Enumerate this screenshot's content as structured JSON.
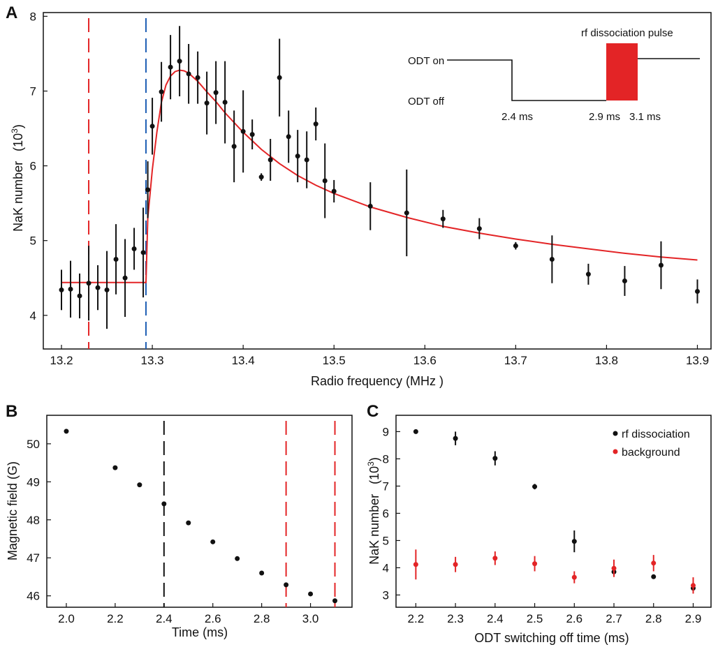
{
  "colors": {
    "red": "#e32426",
    "blue": "#1f5fb4",
    "black": "#111111"
  },
  "chart_data": [
    {
      "id": "A",
      "panel_label": "A",
      "type": "scatter",
      "xlabel": "Radio frequency   (MHz )",
      "ylabel_main": "NaK  number",
      "ylabel_unit_base": "(10",
      "ylabel_unit_exp": "3",
      "ylabel_unit_close": ")",
      "xlim": [
        13.18,
        13.915
      ],
      "ylim": [
        3.55,
        8.05
      ],
      "xticks": [
        13.2,
        13.3,
        13.4,
        13.5,
        13.6,
        13.7,
        13.8,
        13.9
      ],
      "xtick_labels": [
        "13.2",
        "13.3",
        "13.4",
        "13.5",
        "13.6",
        "13.7",
        "13.8",
        "13.9"
      ],
      "yticks": [
        4,
        5,
        6,
        7,
        8
      ],
      "ytick_labels": [
        "4",
        "5",
        "6",
        "7",
        "8"
      ],
      "vlines": [
        {
          "x": 13.23,
          "color": "red",
          "dash": "dashed"
        },
        {
          "x": 13.293,
          "color": "blue",
          "dash": "dashed"
        }
      ],
      "points": [
        {
          "x": 13.2,
          "y": 4.34,
          "err": 0.27
        },
        {
          "x": 13.21,
          "y": 4.35,
          "err": 0.38
        },
        {
          "x": 13.22,
          "y": 4.26,
          "err": 0.3
        },
        {
          "x": 13.23,
          "y": 4.43,
          "err": 0.5
        },
        {
          "x": 13.24,
          "y": 4.37,
          "err": 0.3
        },
        {
          "x": 13.25,
          "y": 4.34,
          "err": 0.52
        },
        {
          "x": 13.26,
          "y": 4.75,
          "err": 0.47
        },
        {
          "x": 13.27,
          "y": 4.5,
          "err": 0.52
        },
        {
          "x": 13.28,
          "y": 4.89,
          "err": 0.28
        },
        {
          "x": 13.29,
          "y": 4.84,
          "err": 0.6
        },
        {
          "x": 13.295,
          "y": 5.68,
          "err": 0.38
        },
        {
          "x": 13.3,
          "y": 6.53,
          "err": 0.38
        },
        {
          "x": 13.31,
          "y": 6.99,
          "err": 0.4
        },
        {
          "x": 13.32,
          "y": 7.32,
          "err": 0.43
        },
        {
          "x": 13.33,
          "y": 7.4,
          "err": 0.47
        },
        {
          "x": 13.34,
          "y": 7.23,
          "err": 0.4
        },
        {
          "x": 13.35,
          "y": 7.18,
          "err": 0.35
        },
        {
          "x": 13.36,
          "y": 6.84,
          "err": 0.42
        },
        {
          "x": 13.37,
          "y": 6.98,
          "err": 0.42
        },
        {
          "x": 13.38,
          "y": 6.85,
          "err": 0.55
        },
        {
          "x": 13.39,
          "y": 6.26,
          "err": 0.48
        },
        {
          "x": 13.4,
          "y": 6.46,
          "err": 0.55
        },
        {
          "x": 13.41,
          "y": 6.42,
          "err": 0.2
        },
        {
          "x": 13.42,
          "y": 5.85,
          "err": 0.05
        },
        {
          "x": 13.43,
          "y": 6.08,
          "err": 0.28
        },
        {
          "x": 13.44,
          "y": 7.18,
          "err": 0.52
        },
        {
          "x": 13.45,
          "y": 6.39,
          "err": 0.35
        },
        {
          "x": 13.46,
          "y": 6.13,
          "err": 0.35
        },
        {
          "x": 13.47,
          "y": 6.08,
          "err": 0.38
        },
        {
          "x": 13.48,
          "y": 6.56,
          "err": 0.22
        },
        {
          "x": 13.49,
          "y": 5.8,
          "err": 0.5
        },
        {
          "x": 13.5,
          "y": 5.66,
          "err": 0.15
        },
        {
          "x": 13.54,
          "y": 5.46,
          "err": 0.32
        },
        {
          "x": 13.58,
          "y": 5.37,
          "err": 0.58
        },
        {
          "x": 13.62,
          "y": 5.29,
          "err": 0.12
        },
        {
          "x": 13.66,
          "y": 5.16,
          "err": 0.14
        },
        {
          "x": 13.7,
          "y": 4.93,
          "err": 0.05
        },
        {
          "x": 13.74,
          "y": 4.75,
          "err": 0.32
        },
        {
          "x": 13.78,
          "y": 4.55,
          "err": 0.14
        },
        {
          "x": 13.82,
          "y": 4.46,
          "err": 0.2
        },
        {
          "x": 13.86,
          "y": 4.67,
          "err": 0.32
        },
        {
          "x": 13.9,
          "y": 4.32,
          "err": 0.16
        }
      ],
      "fit": {
        "color": "red",
        "x": [
          13.2,
          13.293,
          13.295,
          13.3,
          13.305,
          13.31,
          13.315,
          13.32,
          13.325,
          13.33,
          13.335,
          13.34,
          13.35,
          13.36,
          13.37,
          13.38,
          13.39,
          13.4,
          13.42,
          13.44,
          13.46,
          13.48,
          13.5,
          13.54,
          13.58,
          13.62,
          13.66,
          13.7,
          13.74,
          13.78,
          13.82,
          13.86,
          13.9
        ],
        "y": [
          4.44,
          4.44,
          5.3,
          5.95,
          6.45,
          6.85,
          7.08,
          7.2,
          7.26,
          7.28,
          7.27,
          7.24,
          7.13,
          6.99,
          6.86,
          6.71,
          6.58,
          6.45,
          6.22,
          6.03,
          5.87,
          5.74,
          5.63,
          5.45,
          5.31,
          5.19,
          5.1,
          5.02,
          4.95,
          4.89,
          4.83,
          4.78,
          4.74
        ]
      },
      "inset": {
        "odt_on_label": "ODT on",
        "odt_off_label": "ODT off",
        "pulse_label": "rf dissociation pulse",
        "t1_label": "2.4 ms",
        "t2_label": "2.9 ms",
        "t3_label": "3.1 ms"
      }
    },
    {
      "id": "B",
      "panel_label": "B",
      "type": "scatter",
      "xlabel": "Time  (ms)",
      "ylabel": "Magnetic field  (G)",
      "xlim": [
        1.92,
        3.17
      ],
      "ylim": [
        45.7,
        50.75
      ],
      "xticks": [
        2.0,
        2.2,
        2.4,
        2.6,
        2.8,
        3.0
      ],
      "xtick_labels": [
        "2.0",
        "2.2",
        "2.4",
        "2.6",
        "2.8",
        "3.0"
      ],
      "yticks": [
        46,
        47,
        48,
        49,
        50
      ],
      "ytick_labels": [
        "46",
        "47",
        "48",
        "49",
        "50"
      ],
      "vlines": [
        {
          "x": 2.4,
          "color": "black",
          "dash": "dashed"
        },
        {
          "x": 2.9,
          "color": "red",
          "dash": "dashed"
        },
        {
          "x": 3.1,
          "color": "red",
          "dash": "dashed"
        }
      ],
      "points": [
        {
          "x": 2.0,
          "y": 50.33
        },
        {
          "x": 2.2,
          "y": 49.37
        },
        {
          "x": 2.3,
          "y": 48.92
        },
        {
          "x": 2.4,
          "y": 48.42
        },
        {
          "x": 2.5,
          "y": 47.92
        },
        {
          "x": 2.6,
          "y": 47.42
        },
        {
          "x": 2.7,
          "y": 46.98
        },
        {
          "x": 2.8,
          "y": 46.6
        },
        {
          "x": 2.9,
          "y": 46.29
        },
        {
          "x": 3.0,
          "y": 46.05
        },
        {
          "x": 3.1,
          "y": 45.87
        }
      ]
    },
    {
      "id": "C",
      "panel_label": "C",
      "type": "scatter",
      "xlabel": "ODT switching off time  (ms)",
      "ylabel_main": "NaK  number",
      "ylabel_unit_base": "(10",
      "ylabel_unit_exp": "3",
      "ylabel_unit_close": ")",
      "xlim": [
        2.15,
        2.945
      ],
      "ylim": [
        2.55,
        9.6
      ],
      "xticks": [
        2.2,
        2.3,
        2.4,
        2.5,
        2.6,
        2.7,
        2.8,
        2.9
      ],
      "xtick_labels": [
        "2.2",
        "2.3",
        "2.4",
        "2.5",
        "2.6",
        "2.7",
        "2.8",
        "2.9"
      ],
      "yticks": [
        3,
        4,
        5,
        6,
        7,
        8,
        9
      ],
      "ytick_labels": [
        "3",
        "4",
        "5",
        "6",
        "7",
        "8",
        "9"
      ],
      "legend": [
        {
          "label": "rf dissociation",
          "color": "black"
        },
        {
          "label": "background",
          "color": "red"
        }
      ],
      "series": [
        {
          "name": "rf dissociation",
          "color": "black",
          "points": [
            {
              "x": 2.2,
              "y": 9.0,
              "err": 0.06
            },
            {
              "x": 2.3,
              "y": 8.75,
              "err": 0.25
            },
            {
              "x": 2.4,
              "y": 8.02,
              "err": 0.26
            },
            {
              "x": 2.5,
              "y": 6.98,
              "err": 0.1
            },
            {
              "x": 2.6,
              "y": 4.97,
              "err": 0.4
            },
            {
              "x": 2.7,
              "y": 3.85,
              "err": 0.15
            },
            {
              "x": 2.8,
              "y": 3.67,
              "err": 0.05
            },
            {
              "x": 2.9,
              "y": 3.25,
              "err": 0.1
            }
          ]
        },
        {
          "name": "background",
          "color": "red",
          "points": [
            {
              "x": 2.2,
              "y": 4.12,
              "err": 0.55
            },
            {
              "x": 2.3,
              "y": 4.12,
              "err": 0.28
            },
            {
              "x": 2.4,
              "y": 4.35,
              "err": 0.25
            },
            {
              "x": 2.5,
              "y": 4.15,
              "err": 0.28
            },
            {
              "x": 2.6,
              "y": 3.65,
              "err": 0.22
            },
            {
              "x": 2.7,
              "y": 3.98,
              "err": 0.32
            },
            {
              "x": 2.8,
              "y": 4.17,
              "err": 0.3
            },
            {
              "x": 2.9,
              "y": 3.35,
              "err": 0.3
            }
          ]
        }
      ]
    }
  ]
}
